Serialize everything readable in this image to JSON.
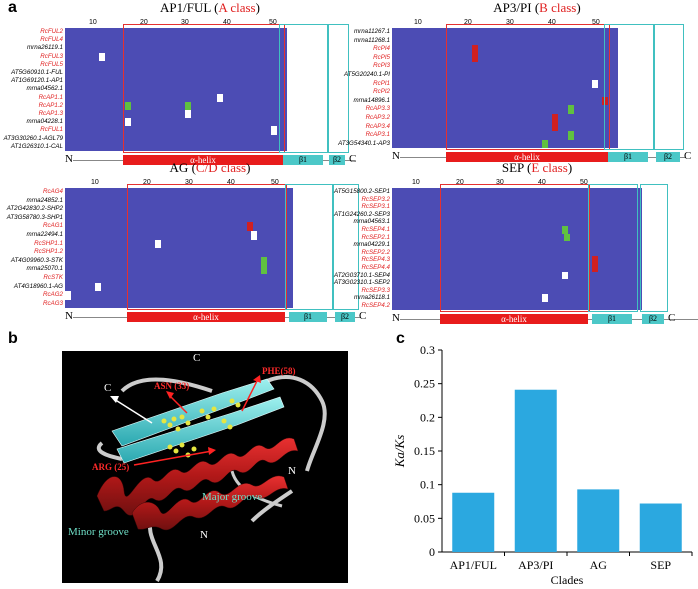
{
  "figure": {
    "panel_a_letter": "a",
    "panel_b_letter": "b",
    "panel_c_letter": "c"
  },
  "colors": {
    "alignment_bg": "#4c4cb4",
    "helix": "#e81c1c",
    "beta": "#4cc8c8",
    "bar": "#2ba8e0",
    "red_label": "#e02020"
  },
  "blocks": {
    "ap1": {
      "title_prefix": "AP1/FUL (",
      "title_class": "A class",
      "title_suffix": ")",
      "ticks": [
        "10",
        "20",
        "30",
        "40",
        "50"
      ],
      "rows": [
        {
          "label": "RcFUL2",
          "color": "red"
        },
        {
          "label": "RcFUL4",
          "color": "red"
        },
        {
          "label": "mrna26119.1",
          "color": "black"
        },
        {
          "label": "RcFUL3",
          "color": "red"
        },
        {
          "label": "RcFUL5",
          "color": "red"
        },
        {
          "label": "AT5G60910.1-FUL",
          "color": "black"
        },
        {
          "label": "AT1G69120.1-AP1",
          "color": "black"
        },
        {
          "label": "mrna04562.1",
          "color": "black"
        },
        {
          "label": "RcAP1.1",
          "color": "red"
        },
        {
          "label": "RcAP1.2",
          "color": "red"
        },
        {
          "label": "RcAP1.3",
          "color": "red"
        },
        {
          "label": "mrna04228.1",
          "color": "black"
        },
        {
          "label": "RcFUL1",
          "color": "red"
        },
        {
          "label": "AT3G30260.1-AGL79",
          "color": "black"
        },
        {
          "label": "AT1G26310.1-CAL",
          "color": "black"
        }
      ],
      "helix_label": "α-helix",
      "beta1_label": "β1",
      "beta2_label": "β2",
      "n_label": "N",
      "c_label": "C"
    },
    "ap3": {
      "title_prefix": "AP3/PI (",
      "title_class": "B class",
      "title_suffix": ")",
      "ticks": [
        "10",
        "20",
        "30",
        "40",
        "50"
      ],
      "rows": [
        {
          "label": "mrna11267.1",
          "color": "black"
        },
        {
          "label": "mrna11268.1",
          "color": "black"
        },
        {
          "label": "RcPI4",
          "color": "red"
        },
        {
          "label": "RcPI5",
          "color": "red"
        },
        {
          "label": "RcPI3",
          "color": "red"
        },
        {
          "label": "AT5G20240.1-PI",
          "color": "black"
        },
        {
          "label": "RcPI1",
          "color": "red"
        },
        {
          "label": "RcPI2",
          "color": "red"
        },
        {
          "label": "mrna14896.1",
          "color": "black"
        },
        {
          "label": "RcAP3.3",
          "color": "red"
        },
        {
          "label": "RcAP3.2",
          "color": "red"
        },
        {
          "label": "RcAP3.4",
          "color": "red"
        },
        {
          "label": "RcAP3.1",
          "color": "red"
        },
        {
          "label": "AT3G54340.1-AP3",
          "color": "black"
        }
      ],
      "helix_label": "α-helix",
      "beta1_label": "β1",
      "beta2_label": "β2",
      "n_label": "N",
      "c_label": "C"
    },
    "ag": {
      "title_prefix": "AG (",
      "title_class": "C/D class",
      "title_suffix": ")",
      "ticks": [
        "10",
        "20",
        "30",
        "40",
        "50"
      ],
      "rows": [
        {
          "label": "RcAG4",
          "color": "red"
        },
        {
          "label": "mrna24852.1",
          "color": "black"
        },
        {
          "label": "AT2G42830.2-SHP2",
          "color": "black"
        },
        {
          "label": "AT3G58780.3-SHP1",
          "color": "black"
        },
        {
          "label": "RcAG1",
          "color": "red"
        },
        {
          "label": "mrna22494.1",
          "color": "black"
        },
        {
          "label": "RcSHP1.1",
          "color": "red"
        },
        {
          "label": "RcSHP1.2",
          "color": "red"
        },
        {
          "label": "AT4G09960.3-STK",
          "color": "black"
        },
        {
          "label": "mrna25070.1",
          "color": "black"
        },
        {
          "label": "RcSTK",
          "color": "red"
        },
        {
          "label": "AT4G18960.1-AG",
          "color": "black"
        },
        {
          "label": "RcAG2",
          "color": "red"
        },
        {
          "label": "RcAG3",
          "color": "red"
        }
      ],
      "helix_label": "α-helix",
      "beta1_label": "β1",
      "beta2_label": "β2",
      "n_label": "N",
      "c_label": "C"
    },
    "sep": {
      "title_prefix": "SEP (",
      "title_class": "E class",
      "title_suffix": ")",
      "ticks": [
        "10",
        "20",
        "30",
        "40",
        "50"
      ],
      "rows": [
        {
          "label": "AT5G15800.2-SEP1",
          "color": "black"
        },
        {
          "label": "RcSEP3.2",
          "color": "red"
        },
        {
          "label": "RcSEP3.1",
          "color": "red"
        },
        {
          "label": "AT1G24260.2-SEP3",
          "color": "black"
        },
        {
          "label": "mrna04563.1",
          "color": "black"
        },
        {
          "label": "RcSEP4.1",
          "color": "red"
        },
        {
          "label": "RcSEP2.1",
          "color": "red"
        },
        {
          "label": "mrna04229.1",
          "color": "black"
        },
        {
          "label": "RcSEP2.2",
          "color": "red"
        },
        {
          "label": "RcSEP4.3",
          "color": "red"
        },
        {
          "label": "RcSEP4.4",
          "color": "red"
        },
        {
          "label": "AT2G03710.1-SEP4",
          "color": "black"
        },
        {
          "label": "AT3G02310.1-SEP2",
          "color": "black"
        },
        {
          "label": "RcSEP3.3",
          "color": "red"
        },
        {
          "label": "mrna26118.1",
          "color": "black"
        },
        {
          "label": "RcSEP4.2",
          "color": "red"
        }
      ],
      "helix_label": "α-helix",
      "beta1_label": "β1",
      "beta2_label": "β2",
      "n_label": "N",
      "c_label": "C"
    }
  },
  "structure": {
    "asn_label": "ASN (33)",
    "phe_label": "PHE(58)",
    "arg_label": "ARG (25)",
    "major_groove": "Major groove",
    "minor_groove": "Minor groove",
    "c_label": "C",
    "n_label": "N"
  },
  "chart_data": {
    "type": "bar",
    "categories": [
      "AP1/FUL",
      "AP3/PI",
      "AG",
      "SEP"
    ],
    "values": [
      0.088,
      0.241,
      0.093,
      0.072
    ],
    "title": "",
    "xlabel": "Clades",
    "ylabel": "Ka/Ks",
    "ylim": [
      0,
      0.3
    ],
    "yticks": [
      "0",
      "0.05",
      "0.1",
      "0.15",
      "0.2",
      "0.25",
      "0.3"
    ],
    "grid": false
  }
}
